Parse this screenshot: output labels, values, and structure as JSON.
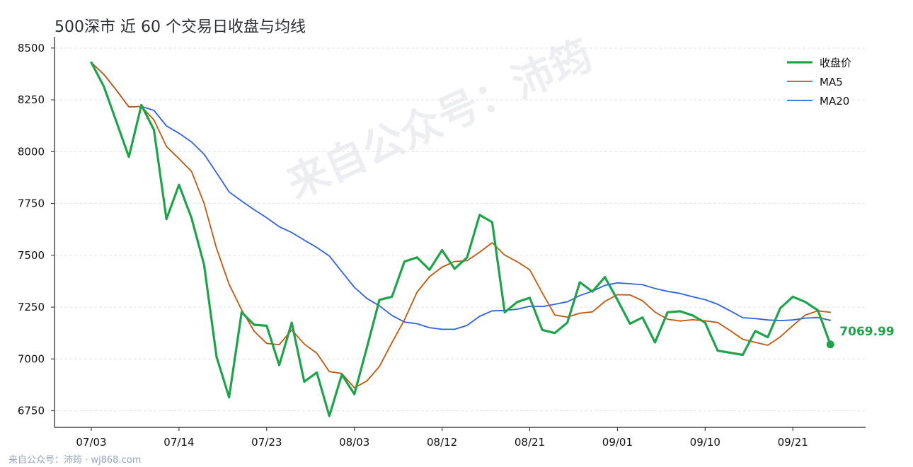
{
  "title": "500深市 近 60 个交易日收盘与均线",
  "footer": "来自公众号：沛筠 · wj868.com",
  "watermark": "来自公众号：沛筠",
  "colors": {
    "close": "#1fa34a",
    "ma5": "#c0580f",
    "ma20": "#2f63de",
    "grid": "#e3e3e3",
    "axis": "#222222",
    "title": "#2b2f36"
  },
  "chart_data": {
    "type": "line",
    "title": "500深市 近 60 个交易日收盘与均线",
    "xlabel": "",
    "ylabel": "",
    "ylim": [
      6670,
      8520
    ],
    "yticks": [
      6750,
      7000,
      7250,
      7500,
      7750,
      8000,
      8250,
      8500
    ],
    "grid": "y-dashed",
    "legend_position": "top-right",
    "last_label": "7069.99",
    "xticks": [
      {
        "i": 0,
        "label": "07/03"
      },
      {
        "i": 7,
        "label": "07/14"
      },
      {
        "i": 14,
        "label": "07/23"
      },
      {
        "i": 21,
        "label": "08/03"
      },
      {
        "i": 28,
        "label": "08/12"
      },
      {
        "i": 35,
        "label": "08/21"
      },
      {
        "i": 42,
        "label": "09/01"
      },
      {
        "i": 49,
        "label": "09/10"
      },
      {
        "i": 56,
        "label": "09/21"
      }
    ],
    "series": [
      {
        "name": "收盘价",
        "values": [
          8430,
          8315,
          8145,
          7975,
          8225,
          8105,
          7675,
          7840,
          7680,
          7455,
          7010,
          6815,
          7225,
          7165,
          7160,
          6970,
          7175,
          6890,
          6935,
          6725,
          6925,
          6830,
          7055,
          7285,
          7300,
          7470,
          7490,
          7430,
          7525,
          7435,
          7490,
          7695,
          7660,
          7225,
          7275,
          7295,
          7140,
          7125,
          7175,
          7370,
          7325,
          7395,
          7285,
          7170,
          7200,
          7080,
          7225,
          7230,
          7210,
          7175,
          7040,
          7030,
          7020,
          7135,
          7105,
          7245,
          7300,
          7275,
          7235,
          7070
        ]
      },
      {
        "name": "MA5",
        "values": [
          8430,
          8373,
          8297,
          8216,
          8218,
          8153,
          8025,
          7966,
          7905,
          7751,
          7533,
          7360,
          7237,
          7134,
          7075,
          7069,
          7140,
          7072,
          7028,
          6939,
          6930,
          6861,
          6894,
          6964,
          7079,
          7189,
          7322,
          7397,
          7443,
          7470,
          7474,
          7515,
          7561,
          7501,
          7469,
          7430,
          7319,
          7212,
          7202,
          7221,
          7227,
          7278,
          7310,
          7309,
          7281,
          7226,
          7192,
          7183,
          7189,
          7184,
          7176,
          7137,
          7095,
          7080,
          7066,
          7107,
          7161,
          7212,
          7232,
          7225
        ]
      },
      {
        "name": "MA20",
        "values": [
          8430,
          8373,
          8297,
          8216,
          8218,
          8199,
          8124,
          8089,
          8047,
          7988,
          7898,
          7806,
          7762,
          7720,
          7681,
          7638,
          7610,
          7573,
          7538,
          7497,
          7421,
          7346,
          7292,
          7256,
          7210,
          7178,
          7170,
          7151,
          7143,
          7143,
          7162,
          7206,
          7232,
          7234,
          7240,
          7254,
          7253,
          7264,
          7276,
          7306,
          7327,
          7355,
          7367,
          7363,
          7358,
          7340,
          7326,
          7316,
          7300,
          7286,
          7264,
          7232,
          7199,
          7195,
          7188,
          7185,
          7188,
          7197,
          7200,
          7186
        ]
      }
    ]
  }
}
